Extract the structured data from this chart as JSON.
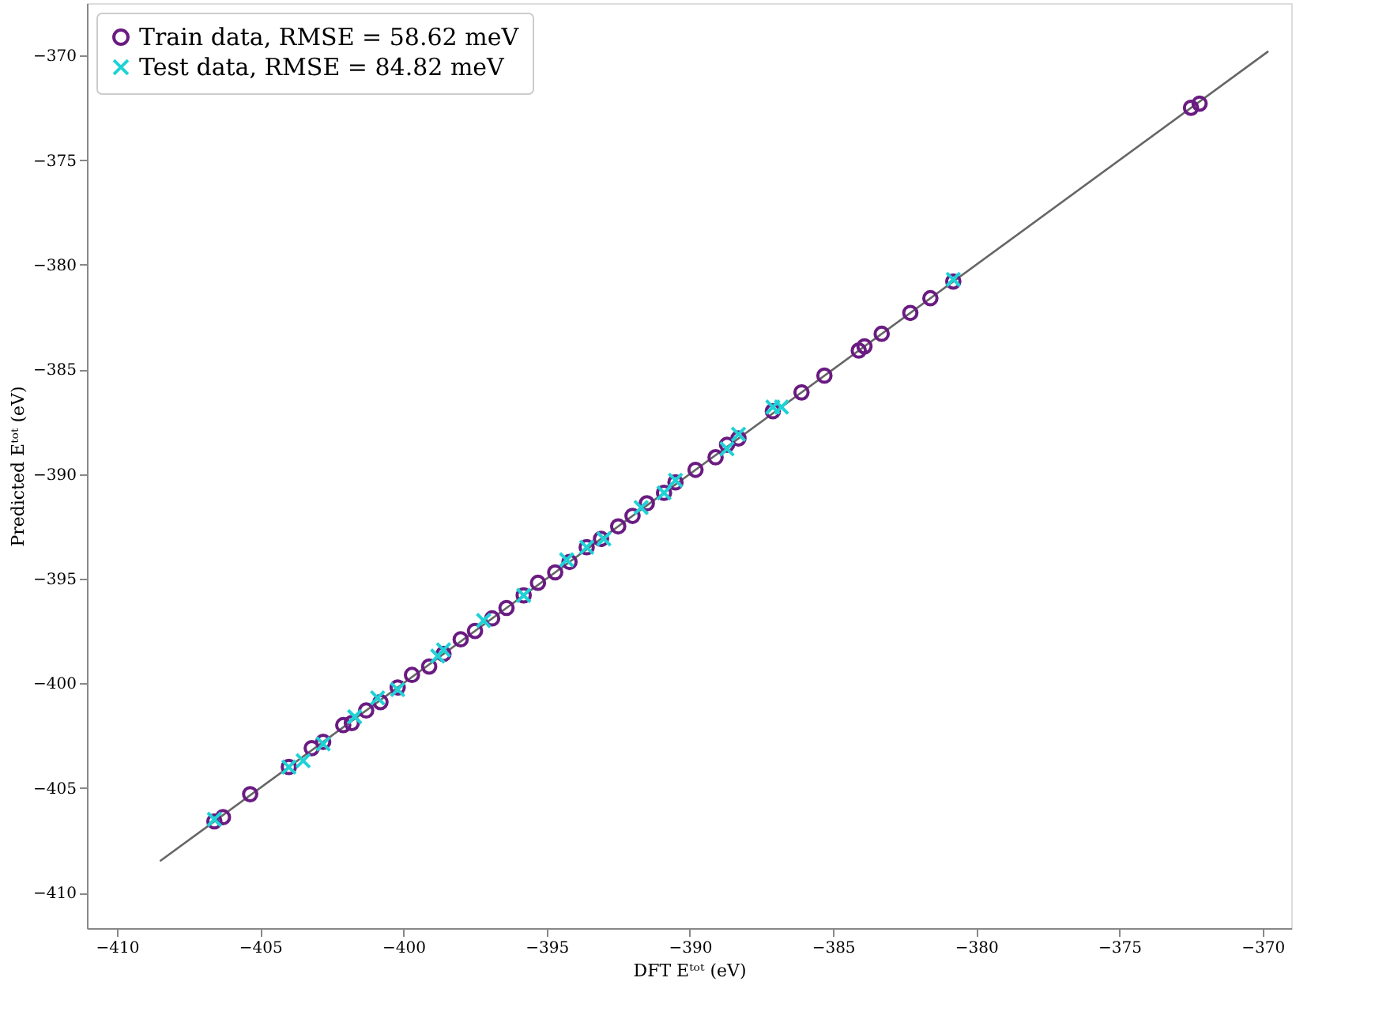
{
  "chart_data": {
    "type": "scatter",
    "xlabel": "DFT Eᵗᵒᵗ (eV)",
    "ylabel": "Predicted Eᵗᵒᵗ (eV)",
    "xlim": [
      -411.05,
      -369.0
    ],
    "ylim": [
      -411.7,
      -367.5
    ],
    "xticks": [
      -410,
      -405,
      -400,
      -395,
      -390,
      -385,
      -380,
      -375,
      -370
    ],
    "yticks": [
      -410,
      -405,
      -400,
      -395,
      -390,
      -385,
      -380,
      -375,
      -370
    ],
    "grid": false,
    "legend": "top left",
    "series": [
      {
        "type": "line",
        "color": "#666666",
        "line_style": "solid",
        "x": [
          -408.5,
          -369.8
        ],
        "values": [
          -408.5,
          -369.8
        ]
      },
      {
        "name": "Train data, RMSE = 58.62 meV",
        "color": "#6a1b82",
        "marker": "circle",
        "x": [
          -406.6,
          -406.3,
          -405.35,
          -404.0,
          -403.2,
          -402.8,
          -402.1,
          -401.8,
          -401.3,
          -400.8,
          -400.2,
          -399.7,
          -399.1,
          -398.6,
          -398.0,
          -397.5,
          -396.9,
          -396.4,
          -395.8,
          -395.3,
          -394.7,
          -394.2,
          -393.6,
          -393.1,
          -392.5,
          -392.0,
          -391.5,
          -390.9,
          -390.5,
          -389.8,
          -389.1,
          -388.7,
          -388.3,
          -387.1,
          -386.1,
          -385.3,
          -384.1,
          -383.9,
          -383.3,
          -382.3,
          -381.6,
          -380.8,
          -372.5,
          -372.2
        ],
        "values": [
          -406.6,
          -406.4,
          -405.3,
          -404.0,
          -403.1,
          -402.8,
          -402.0,
          -401.9,
          -401.3,
          -400.9,
          -400.2,
          -399.6,
          -399.2,
          -398.6,
          -397.9,
          -397.5,
          -396.9,
          -396.4,
          -395.8,
          -395.2,
          -394.7,
          -394.2,
          -393.5,
          -393.1,
          -392.5,
          -392.0,
          -391.4,
          -390.9,
          -390.4,
          -389.8,
          -389.2,
          -388.6,
          -388.3,
          -387.0,
          -386.1,
          -385.3,
          -384.1,
          -383.9,
          -383.3,
          -382.3,
          -381.6,
          -380.8,
          -372.5,
          -372.3
        ]
      },
      {
        "name": "Test data, RMSE = 84.82 meV",
        "color": "#1fd2d6",
        "marker": "cross",
        "x": [
          -406.6,
          -404.0,
          -403.5,
          -402.8,
          -401.7,
          -400.9,
          -400.2,
          -398.8,
          -398.6,
          -397.2,
          -395.8,
          -394.3,
          -393.6,
          -393.0,
          -391.7,
          -390.9,
          -390.5,
          -388.7,
          -388.3,
          -387.1,
          -386.8,
          -380.8
        ],
        "values": [
          -406.5,
          -404.0,
          -403.7,
          -402.9,
          -401.6,
          -400.7,
          -400.3,
          -398.7,
          -398.4,
          -397.0,
          -395.8,
          -394.1,
          -393.5,
          -393.1,
          -391.6,
          -390.9,
          -390.3,
          -388.8,
          -388.1,
          -386.8,
          -386.8,
          -380.7
        ]
      }
    ]
  }
}
